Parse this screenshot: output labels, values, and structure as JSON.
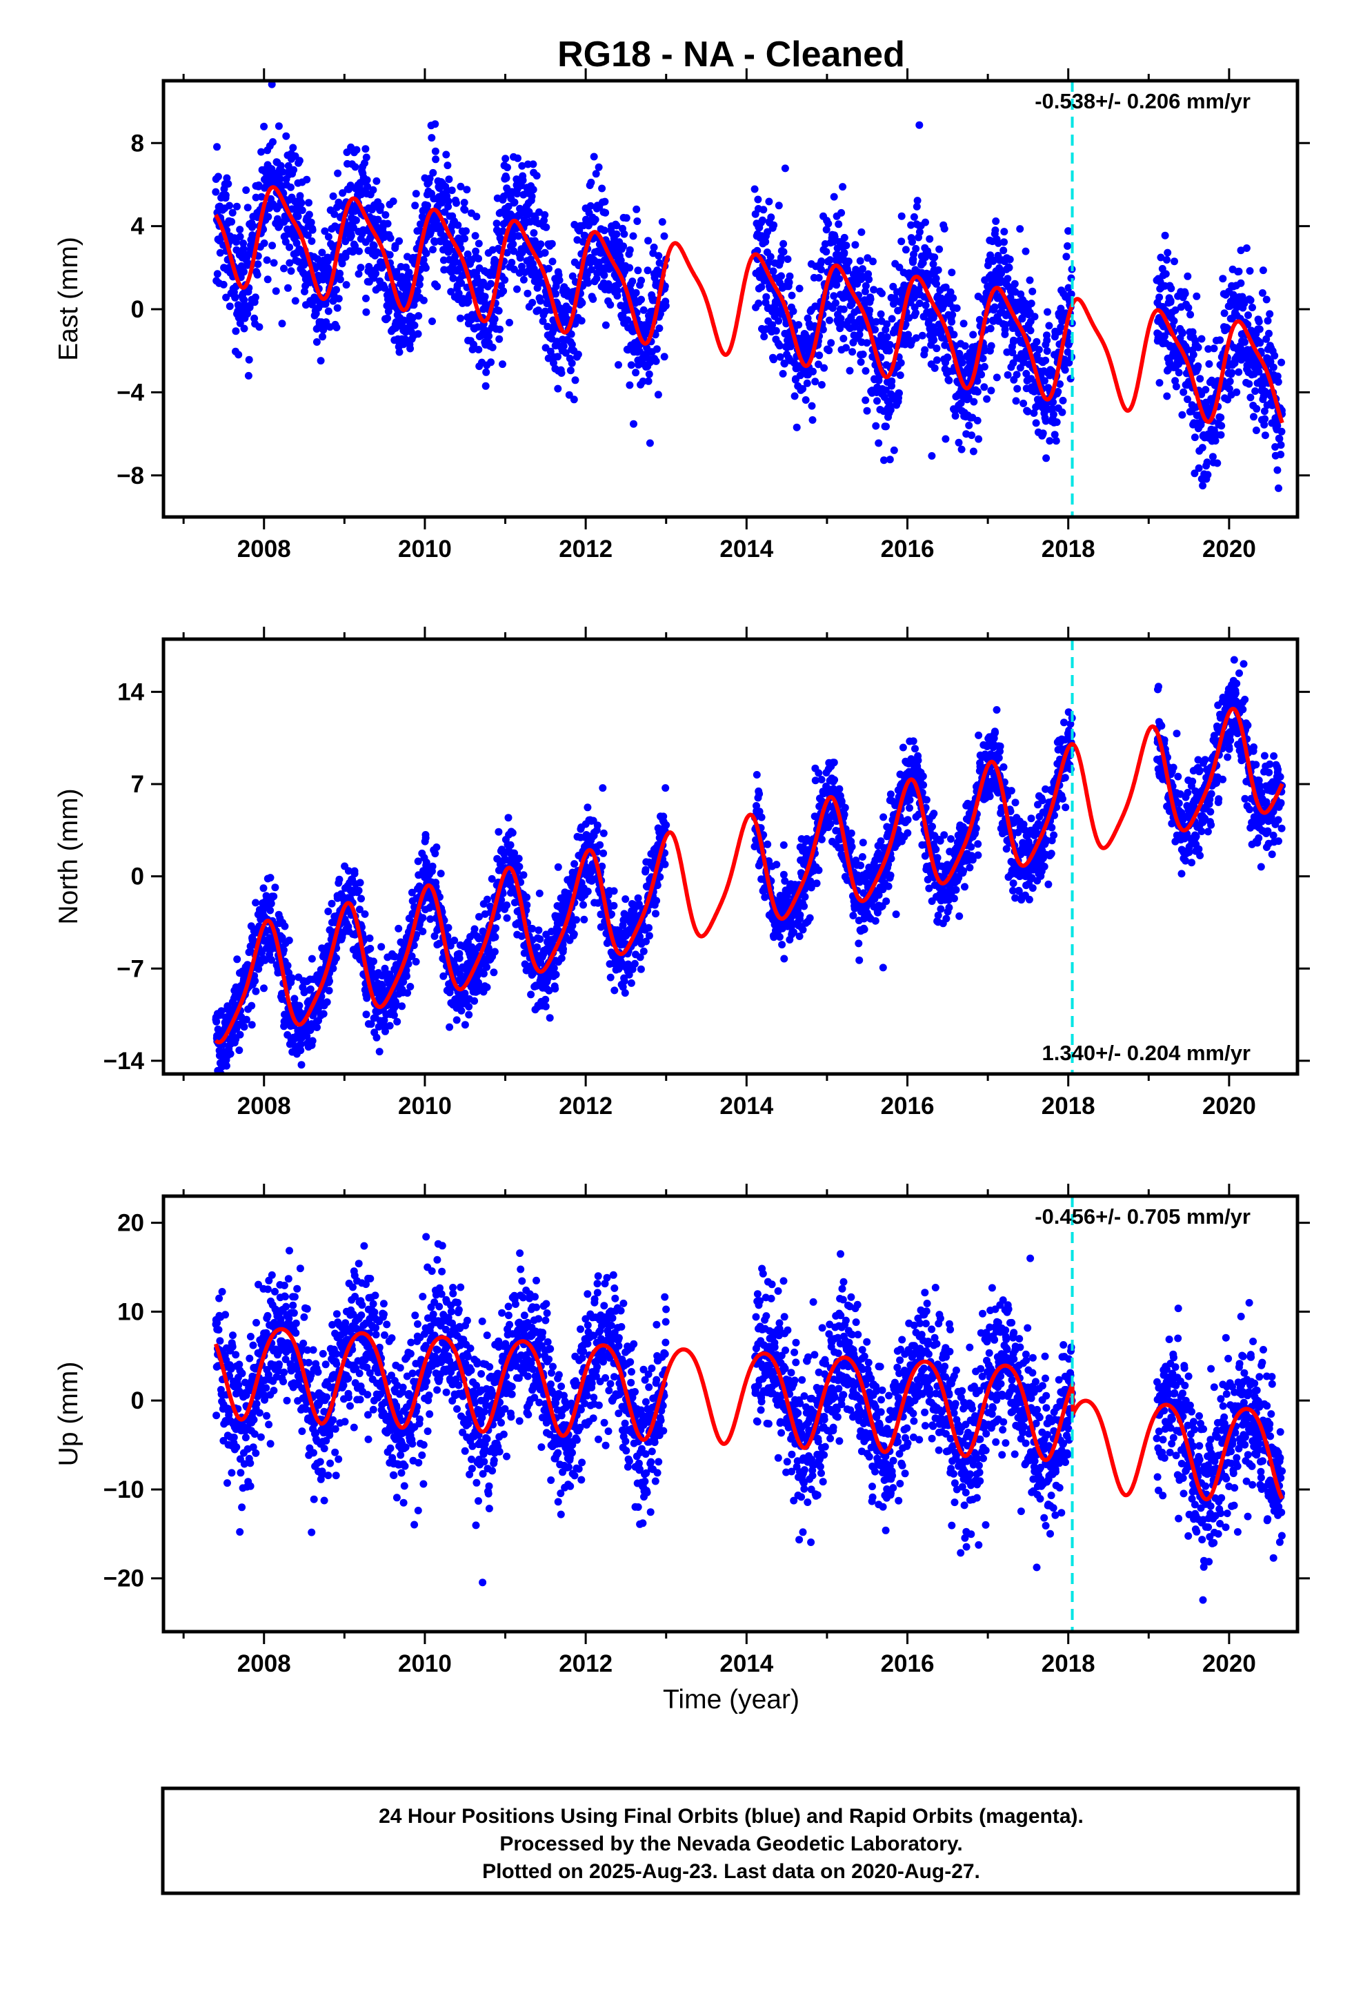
{
  "title": "RG18  - NA - Cleaned",
  "xlabel": "Time (year)",
  "colors": {
    "final_orbits": "#0000ff",
    "model": "#ff0000",
    "break_line": "#00e5e5",
    "frame": "#000000"
  },
  "chart_data": [
    {
      "type": "scatter",
      "component": "East",
      "ylabel": "East (mm)",
      "rate_text": "-0.538+/- 0.206 mm/yr",
      "rate_position": "top-right",
      "xlim": [
        2006.75,
        2020.85
      ],
      "ylim": [
        -10,
        11
      ],
      "yticks": [
        -8,
        -4,
        0,
        4,
        8
      ],
      "xticks": [
        2008,
        2010,
        2012,
        2014,
        2016,
        2018,
        2020
      ],
      "break_year": 2018.05,
      "model_params": {
        "rate": -0.538,
        "offset": 0.4,
        "ref_year": 2014.0,
        "amp_annual": 2.3,
        "phase_annual": 0.35,
        "amp_semi": 0.6,
        "phase_semi": 1.2,
        "post_break_offset": 0.0
      },
      "scatter_params": {
        "noise": 1.6,
        "points_per_year": 300
      },
      "series": [
        {
          "name": "Final Orbits",
          "color": "#0000ff"
        },
        {
          "name": "Model",
          "color": "#ff0000"
        }
      ]
    },
    {
      "type": "scatter",
      "component": "North",
      "ylabel": "North (mm)",
      "rate_text": "1.340+/- 0.204 mm/yr",
      "rate_position": "bottom-right",
      "xlim": [
        2006.75,
        2020.85
      ],
      "ylim": [
        -15,
        18
      ],
      "yticks": [
        -14,
        -7,
        0,
        7,
        14
      ],
      "xticks": [
        2008,
        2010,
        2012,
        2014,
        2016,
        2018,
        2020
      ],
      "break_year": 2018.05,
      "model_params": {
        "rate": 1.34,
        "offset": 0.0,
        "ref_year": 2014.0,
        "amp_annual": 4.0,
        "phase_annual": 1.5,
        "amp_semi": 0.8,
        "phase_semi": 0.5,
        "post_break_offset": 0.0
      },
      "scatter_params": {
        "noise": 1.6,
        "points_per_year": 300
      },
      "series": [
        {
          "name": "Final Orbits",
          "color": "#0000ff"
        },
        {
          "name": "Model",
          "color": "#ff0000"
        }
      ]
    },
    {
      "type": "scatter",
      "component": "Up",
      "ylabel": "Up (mm)",
      "rate_text": "-0.456+/- 0.705 mm/yr",
      "rate_position": "top-right",
      "xlim": [
        2006.75,
        2020.85
      ],
      "ylim": [
        -26,
        23
      ],
      "yticks": [
        -20,
        -10,
        0,
        10,
        20
      ],
      "xticks": [
        2008,
        2010,
        2012,
        2014,
        2016,
        2018,
        2020
      ],
      "break_year": 2018.05,
      "model_params": {
        "rate": -0.456,
        "offset": 0.8,
        "ref_year": 2014.0,
        "amp_annual": 5.2,
        "phase_annual": 0.2,
        "amp_semi": 0.6,
        "phase_semi": 2.0,
        "post_break_offset": -3.5
      },
      "scatter_params": {
        "noise": 4.0,
        "points_per_year": 300
      },
      "series": [
        {
          "name": "Final Orbits",
          "color": "#0000ff"
        },
        {
          "name": "Model",
          "color": "#ff0000"
        }
      ]
    }
  ],
  "data_gaps": [
    [
      2013.0,
      2014.1
    ],
    [
      2018.05,
      2019.1
    ]
  ],
  "caption_lines": [
    "24 Hour Positions Using Final Orbits (blue) and Rapid Orbits (magenta).",
    "Processed by the Nevada Geodetic Laboratory.",
    "Plotted on 2025-Aug-23. Last data on 2020-Aug-27."
  ]
}
